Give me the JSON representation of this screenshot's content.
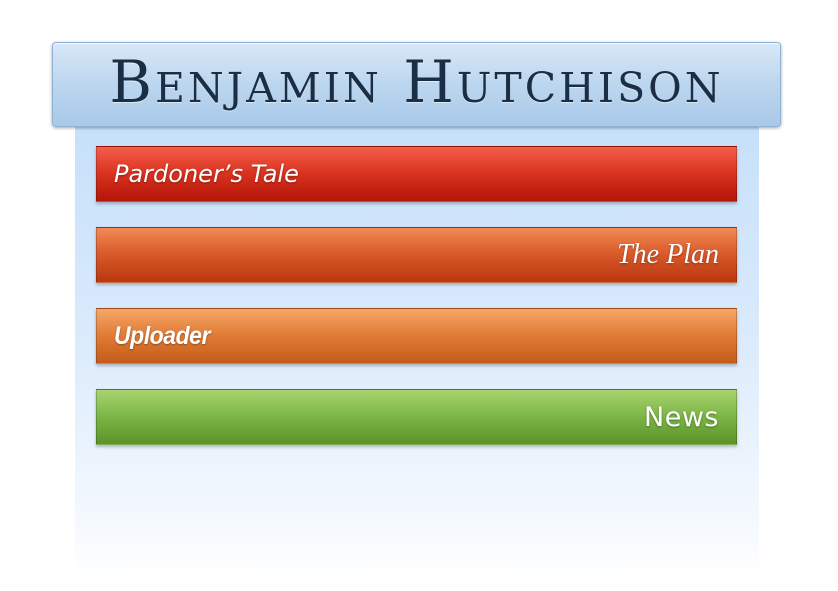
{
  "header": {
    "title": "Benjamin Hutchison"
  },
  "nav": {
    "items": [
      {
        "label": "Pardoner’s Tale",
        "color": "#d9321f",
        "align": "left"
      },
      {
        "label": "The Plan",
        "color": "#d95828",
        "align": "right"
      },
      {
        "label": "Uploader",
        "color": "#e07a35",
        "align": "left"
      },
      {
        "label": "News",
        "color": "#7cb545",
        "align": "right"
      }
    ]
  },
  "colors": {
    "banner": "#bcd6ef",
    "panel": "#d9eafc",
    "title_text": "#1a2e44"
  }
}
